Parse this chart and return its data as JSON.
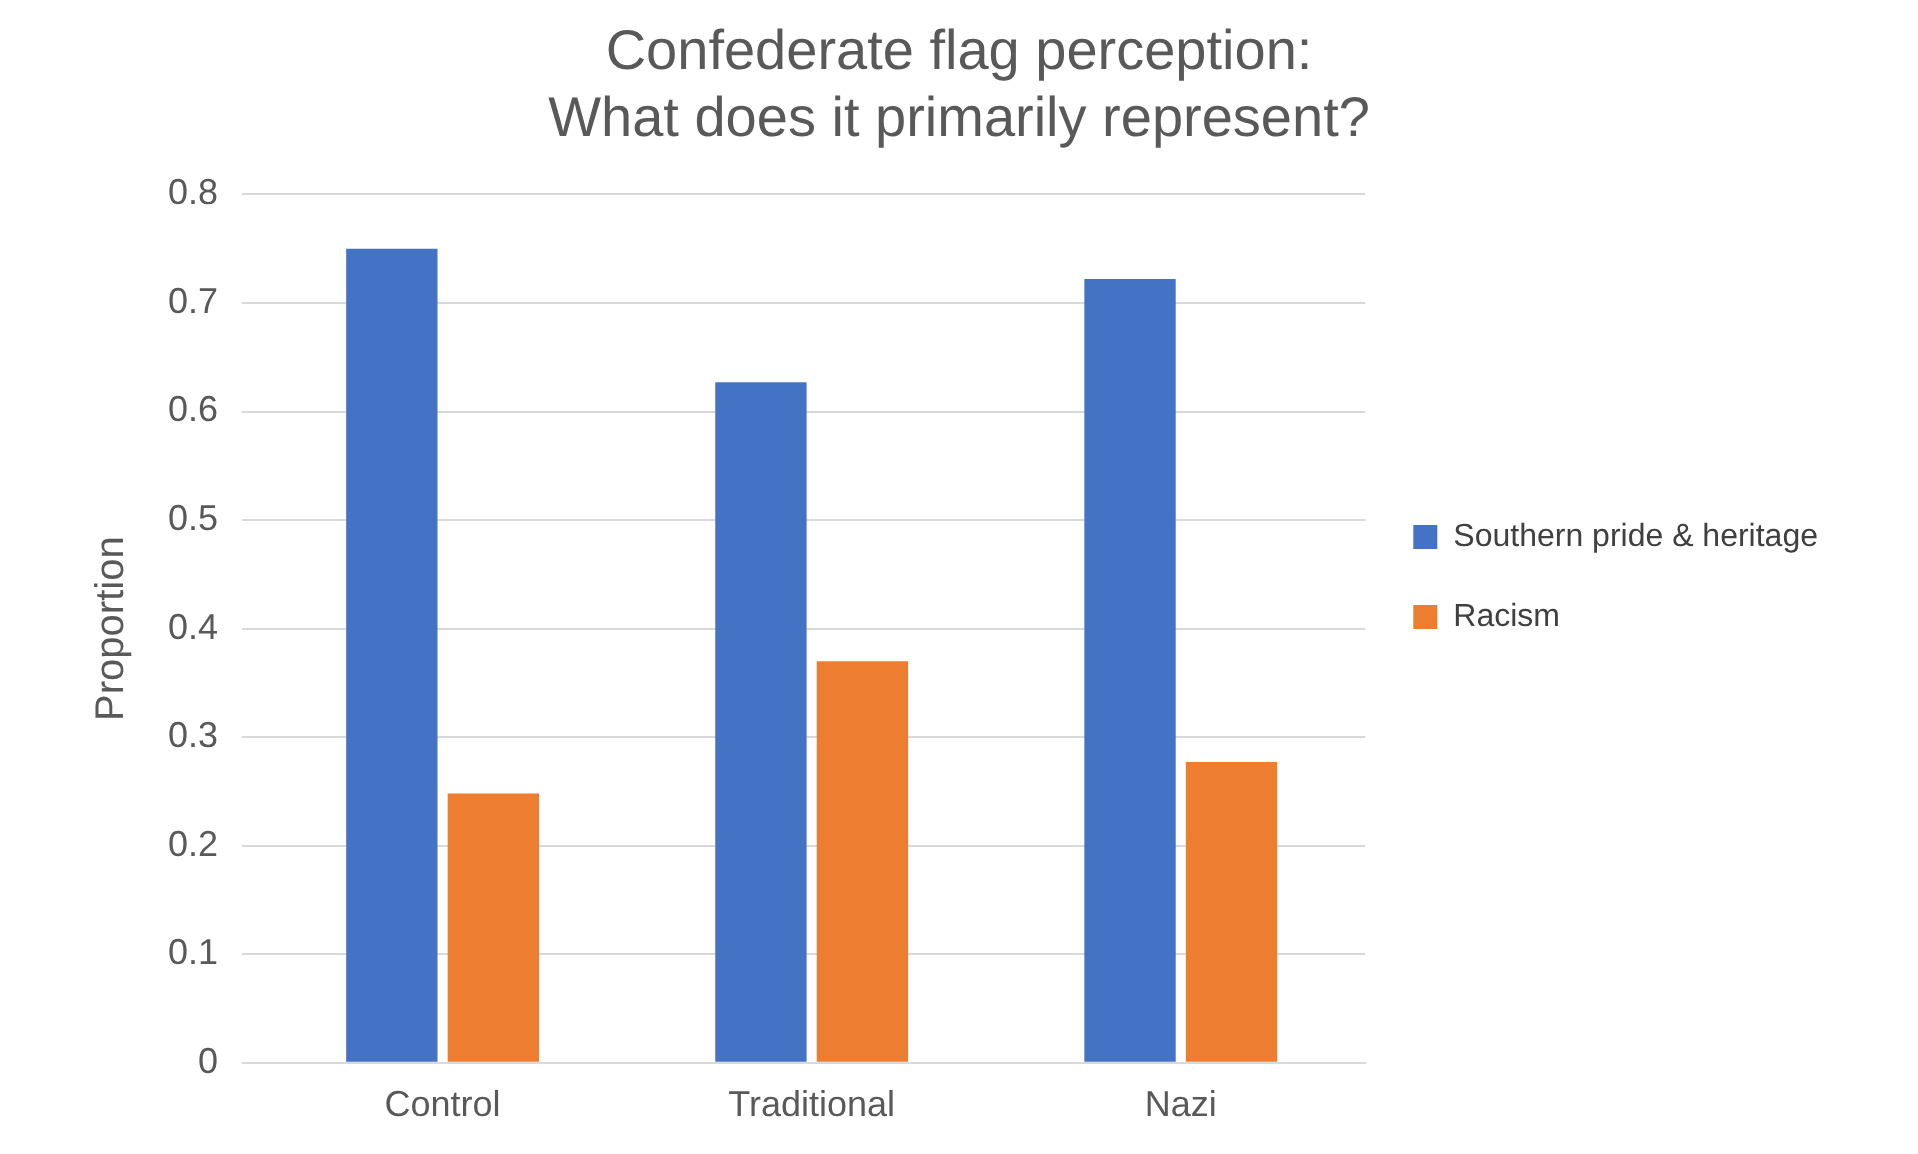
{
  "chart_data": {
    "type": "bar",
    "title": [
      "Confederate flag perception:",
      "What does it primarily represent?"
    ],
    "ylabel": "Proportion",
    "categories": [
      "Control",
      "Traditional",
      "Nazi"
    ],
    "series": [
      {
        "name": "Southern pride & heritage",
        "color": "#4472c4",
        "values": [
          0.75,
          0.627,
          0.722
        ]
      },
      {
        "name": "Racism",
        "color": "#ed7d31",
        "values": [
          0.248,
          0.37,
          0.277
        ]
      }
    ],
    "ylim": [
      0,
      0.8
    ],
    "yticks": [
      0,
      0.1,
      0.2,
      0.3,
      0.4,
      0.5,
      0.6,
      0.7,
      0.8
    ],
    "grid": "y",
    "legend": "right"
  }
}
